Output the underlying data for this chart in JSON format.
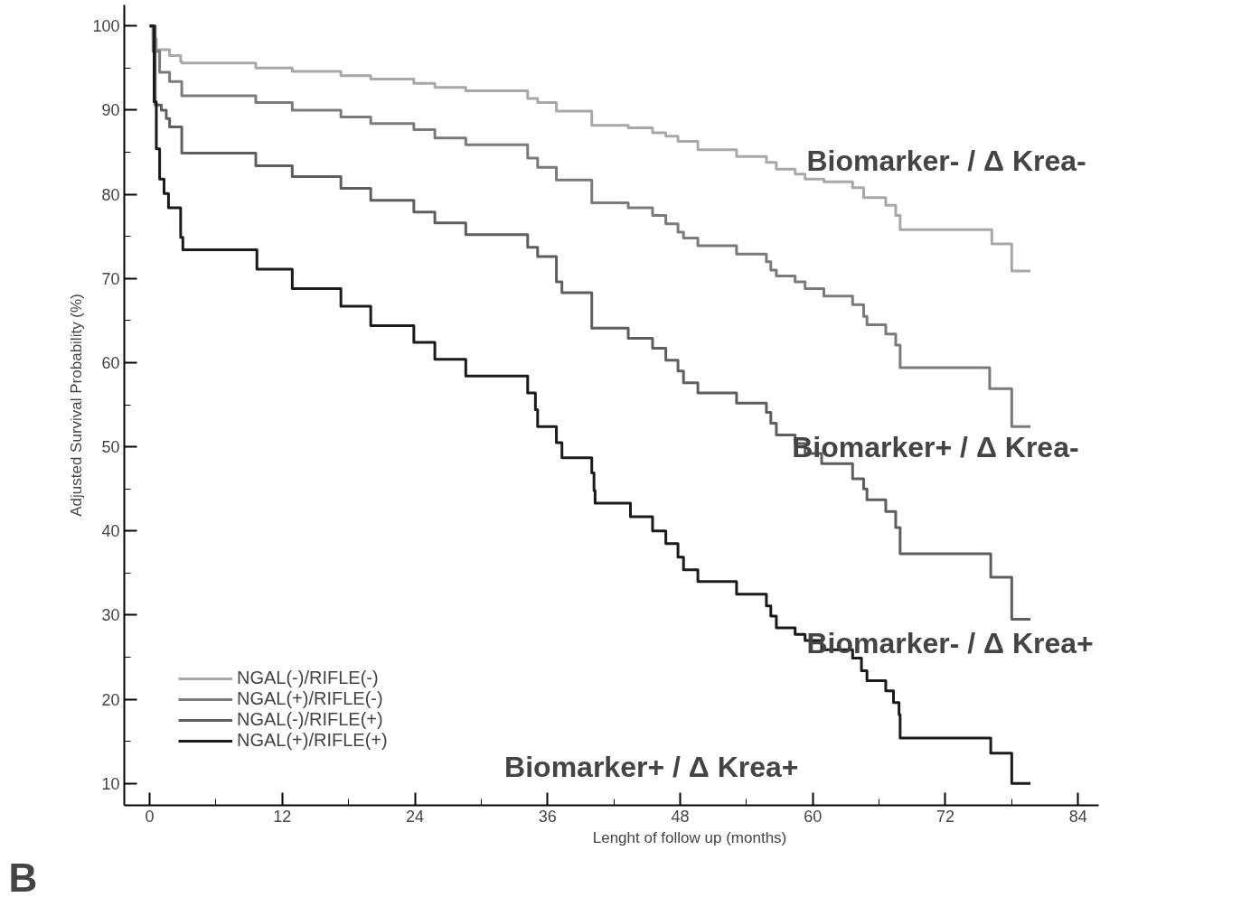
{
  "chart_data": {
    "type": "step",
    "xlabel": "Lenght of follow up (months)",
    "ylabel": "Adjusted Survival Probability (%)",
    "xlim": [
      -2.3,
      85.9
    ],
    "ylim": [
      7.4,
      102.5
    ],
    "xticks": [
      0,
      12,
      24,
      36,
      48,
      60,
      72,
      84
    ],
    "yticks": [
      10,
      20,
      30,
      40,
      50,
      60,
      70,
      80,
      90,
      100
    ],
    "grid": false,
    "legend": "bottom left",
    "marker": "none",
    "line_style": "solid",
    "series": [
      {
        "name": "NGAL(-)/RIFLE(-)",
        "color": "#a8a8a8",
        "x": [
          0,
          0.3,
          0.6,
          1.8,
          2.8,
          2.9,
          9.6,
          12.9,
          17.3,
          20.0,
          23.9,
          25.8,
          28.6,
          34.2,
          35.1,
          36.8,
          40.0,
          43.3,
          45.5,
          46.7,
          47.8,
          49.6,
          53.1,
          55.8,
          56.7,
          58.4,
          59.3,
          61.0,
          63.6,
          64.6,
          66.6,
          67.5,
          67.9,
          76.2,
          78.0,
          79.7
        ],
        "values": [
          100,
          98.5,
          97.2,
          96.5,
          95.8,
          95.6,
          95.0,
          94.6,
          94.1,
          93.7,
          93.2,
          92.7,
          92.3,
          91.4,
          90.9,
          89.9,
          88.2,
          87.9,
          87.3,
          86.9,
          86.3,
          85.3,
          84.5,
          83.8,
          83.0,
          82.4,
          81.8,
          81.5,
          80.8,
          79.6,
          78.7,
          77.5,
          75.8,
          74.1,
          70.9,
          70.9
        ]
      },
      {
        "name": "NGAL(+)/RIFLE(-)",
        "color": "#7a7a7a",
        "x": [
          0,
          0.3,
          0.9,
          1.8,
          2.9,
          9.6,
          12.9,
          17.3,
          20.0,
          23.9,
          25.8,
          28.6,
          34.2,
          35.1,
          36.8,
          40.0,
          43.3,
          45.5,
          46.7,
          47.8,
          48.3,
          49.6,
          53.1,
          55.8,
          56.2,
          56.7,
          58.4,
          59.3,
          61.0,
          63.6,
          64.6,
          64.9,
          66.6,
          67.5,
          67.9,
          76.0,
          78.0,
          79.7
        ],
        "values": [
          100,
          97.0,
          94.5,
          93.4,
          91.7,
          90.9,
          90.0,
          89.2,
          88.4,
          87.7,
          86.7,
          85.9,
          84.3,
          83.2,
          81.7,
          79.0,
          78.4,
          77.5,
          76.5,
          75.5,
          74.8,
          73.9,
          72.9,
          72.0,
          71.0,
          70.3,
          69.6,
          68.8,
          67.9,
          66.9,
          65.5,
          64.5,
          63.4,
          62.1,
          59.4,
          56.9,
          52.4,
          52.4
        ]
      },
      {
        "name": "NGAL(-)/RIFLE(+)",
        "color": "#5e5e5e",
        "x": [
          0,
          0.5,
          1.05,
          1.5,
          1.8,
          2.9,
          9.6,
          12.9,
          17.3,
          20.0,
          23.9,
          25.8,
          28.6,
          34.2,
          35.1,
          36.8,
          37.3,
          40.0,
          43.3,
          45.5,
          46.7,
          47.8,
          48.3,
          49.6,
          53.1,
          55.8,
          56.2,
          56.7,
          58.4,
          59.3,
          60.8,
          63.6,
          64.6,
          64.9,
          66.6,
          67.5,
          67.9,
          76.1,
          78.0,
          79.7
        ],
        "values": [
          100,
          90.6,
          90.0,
          89.0,
          88.0,
          84.9,
          83.4,
          82.1,
          80.7,
          79.3,
          77.9,
          76.6,
          75.2,
          73.7,
          72.6,
          69.6,
          68.3,
          64.1,
          62.9,
          61.7,
          60.3,
          59.0,
          57.6,
          56.4,
          55.2,
          54.1,
          52.8,
          51.4,
          50.4,
          49.2,
          48.0,
          46.2,
          45.0,
          43.7,
          42.3,
          40.4,
          37.3,
          34.5,
          29.5,
          29.5
        ]
      },
      {
        "name": "NGAL(+)/RIFLE(+)",
        "color": "#1a1a1a",
        "x": [
          0,
          0.4,
          0.6,
          0.9,
          1.3,
          1.7,
          2.8,
          3.0,
          9.7,
          12.9,
          17.3,
          20.0,
          23.9,
          25.8,
          28.6,
          34.2,
          34.9,
          35.1,
          36.8,
          37.3,
          40.0,
          40.2,
          40.3,
          43.5,
          45.5,
          46.7,
          47.8,
          48.3,
          49.6,
          53.1,
          55.8,
          56.2,
          56.7,
          58.4,
          59.3,
          60.8,
          63.6,
          64.4,
          64.9,
          66.6,
          67.3,
          67.8,
          67.9,
          76.1,
          78.0,
          79.7
        ],
        "values": [
          100,
          91.0,
          85.4,
          81.8,
          80.1,
          78.4,
          74.9,
          73.4,
          71.1,
          68.8,
          66.7,
          64.4,
          62.4,
          60.4,
          58.4,
          56.4,
          54.4,
          52.4,
          50.5,
          48.7,
          46.9,
          44.8,
          43.3,
          41.7,
          40.0,
          38.5,
          36.9,
          35.4,
          34.0,
          32.5,
          31.1,
          29.9,
          28.5,
          27.7,
          27.0,
          25.9,
          24.9,
          23.4,
          22.2,
          21.0,
          19.6,
          18.2,
          15.4,
          13.6,
          10.0,
          10.0
        ]
      }
    ],
    "annotations": [
      "Biomarker- / Δ Krea-",
      "Biomarker+ / Δ Krea-",
      "Biomarker- / Δ Krea+",
      "Biomarker+ / Δ Krea+",
      "B"
    ]
  }
}
